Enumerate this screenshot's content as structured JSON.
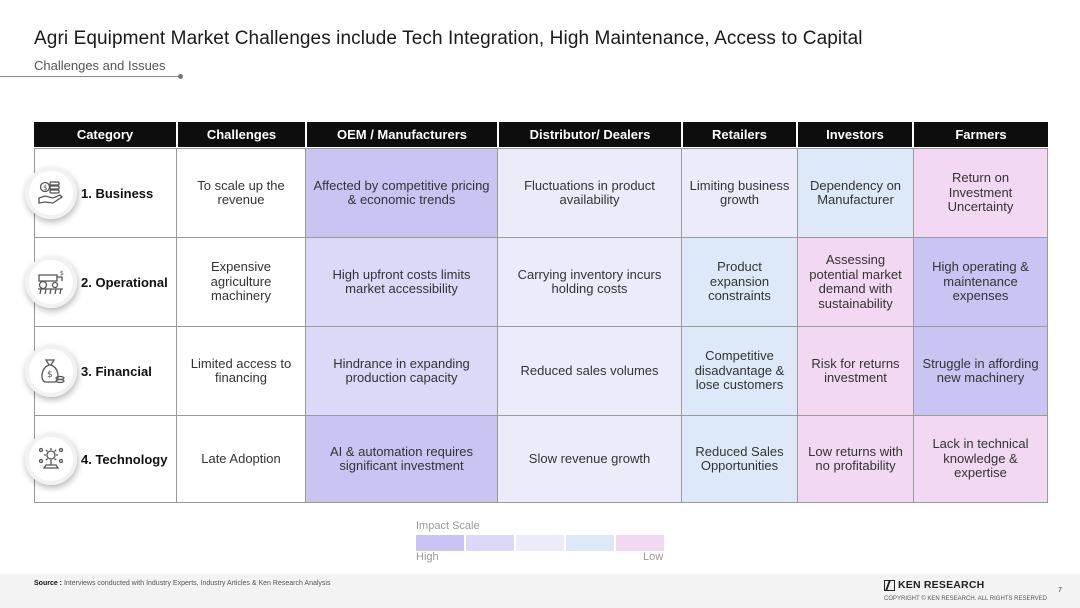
{
  "title": "Agri Equipment Market Challenges include Tech Integration, High Maintenance, Access to Capital",
  "subtitle": "Challenges and Issues",
  "headers": [
    "Category",
    "Challenges",
    "OEM / Manufacturers",
    "Distributor/ Dealers",
    "Retailers",
    "Investors",
    "Farmers"
  ],
  "rows": [
    {
      "category": "1. Business",
      "icon": "hand-money-icon",
      "challenge": "To scale up the revenue",
      "oem": "Affected by competitive pricing & economic trends",
      "distributor": "Fluctuations in product availability",
      "retailers": "Limiting business growth",
      "investors": "Dependency on Manufacturer",
      "farmers": "Return on Investment Uncertainty"
    },
    {
      "category": "2. Operational",
      "icon": "tractor-icon",
      "challenge": "Expensive agriculture machinery",
      "oem": "High upfront costs limits market accessibility",
      "distributor": "Carrying inventory incurs holding costs",
      "retailers": "Product expansion constraints",
      "investors": "Assessing potential market demand with sustainability",
      "farmers": "High operating & maintenance expenses"
    },
    {
      "category": "3. Financial",
      "icon": "money-bag-icon",
      "challenge": "Limited access to financing",
      "oem": "Hindrance in expanding production capacity",
      "distributor": "Reduced sales volumes",
      "retailers": "Competitive disadvantage & lose customers",
      "investors": "Risk for returns investment",
      "farmers": "Struggle in affording new machinery"
    },
    {
      "category": "4. Technology",
      "icon": "automation-icon",
      "challenge": "Late Adoption",
      "oem": "AI & automation requires significant investment",
      "distributor": "Slow revenue  growth",
      "retailers": "Reduced Sales Opportunities",
      "investors": "Low returns with no profitability",
      "farmers": "Lack in technical knowledge & expertise"
    }
  ],
  "impact_levels": [
    [
      "l1",
      "l3",
      "l3",
      "l4",
      "l5"
    ],
    [
      "l2",
      "l3",
      "l4",
      "l5",
      "l1"
    ],
    [
      "l2",
      "l3",
      "l4",
      "l5",
      "l1"
    ],
    [
      "l1",
      "l3",
      "l4",
      "l5",
      "l5"
    ]
  ],
  "legend": {
    "title": "Impact Scale",
    "high": "High",
    "low": "Low",
    "colors": [
      "#c9c4f2",
      "#dcd8f7",
      "#ecebfa",
      "#dde8f8",
      "#f2d8f3"
    ]
  },
  "footer": {
    "source_label": "Source :",
    "source_text": "Interviews conducted with Industry Experts, Industry Articles & Ken Research Analysis",
    "brand": "KEN RESEARCH",
    "copyright": "COPYRIGHT © KEN RESEARCH. ALL RIGHTS RESERVED",
    "page_number": "7"
  }
}
